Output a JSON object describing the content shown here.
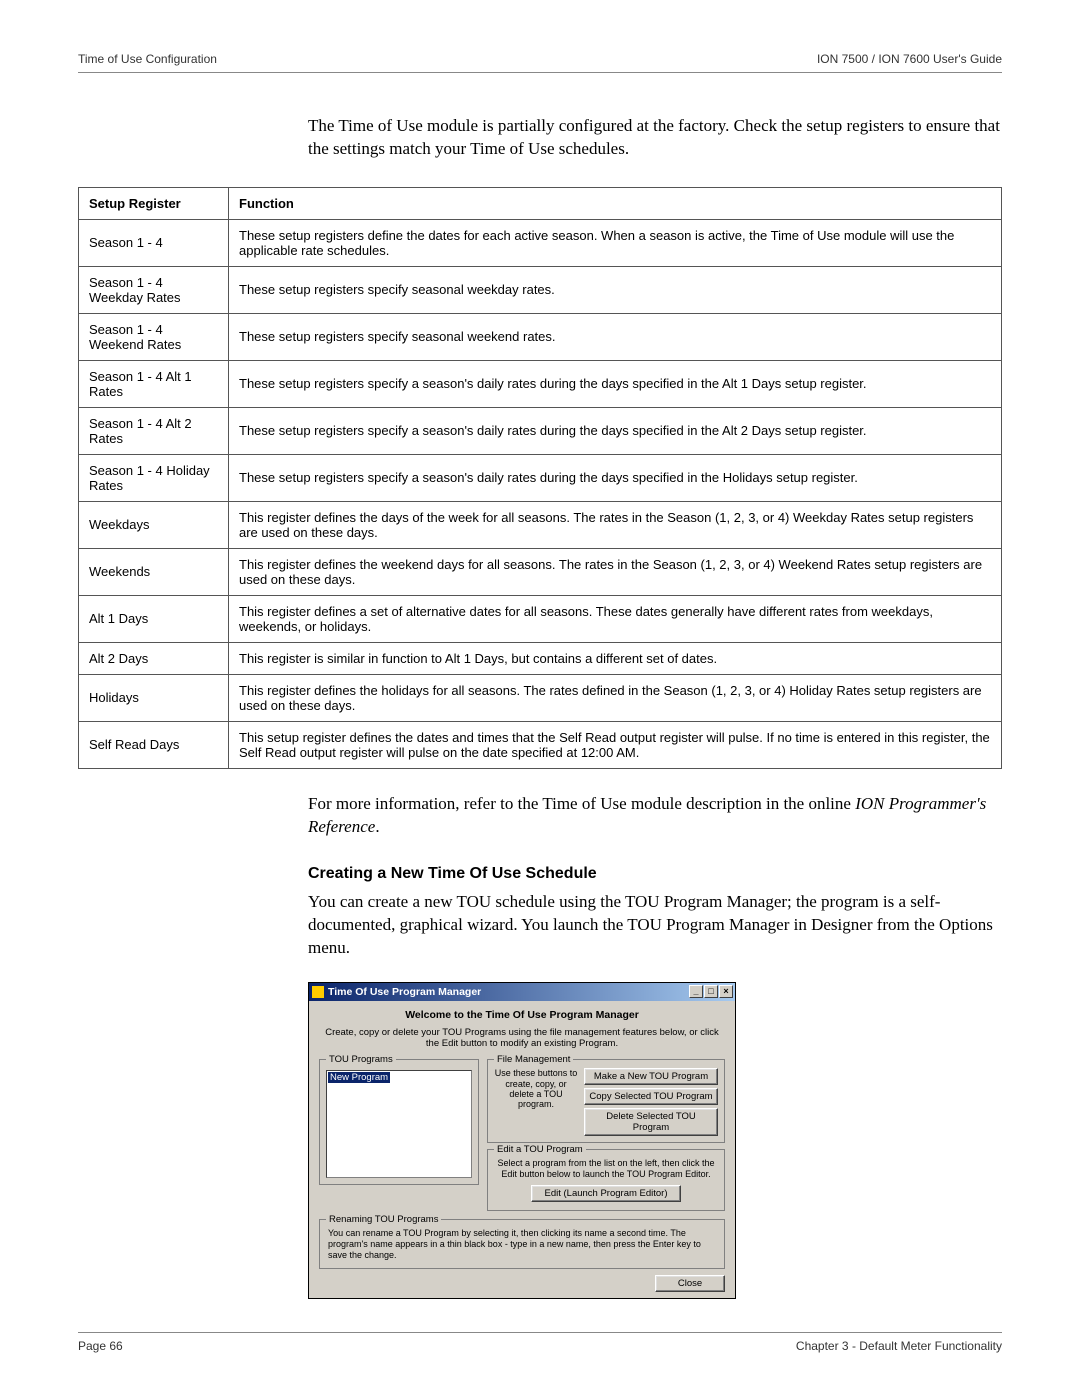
{
  "header": {
    "left": "Time of Use Configuration",
    "right": "ION 7500 / ION 7600 User's Guide"
  },
  "intro": "The Time of Use module is partially configured at the factory. Check the setup registers to ensure that the settings match your Time of Use schedules.",
  "table": {
    "col1": "Setup Register",
    "col2": "Function",
    "rows": [
      {
        "reg": "Season 1 - 4",
        "fn": "These setup registers define the dates for each active season. When a season is active, the Time of Use module will use the applicable rate schedules."
      },
      {
        "reg": "Season 1 - 4 Weekday Rates",
        "fn": "These setup registers specify seasonal weekday rates."
      },
      {
        "reg": "Season 1 - 4 Weekend Rates",
        "fn": "These setup registers specify seasonal weekend rates."
      },
      {
        "reg": "Season 1 - 4 Alt 1 Rates",
        "fn": "These setup registers specify a season's daily rates during the days specified in the Alt 1 Days setup register."
      },
      {
        "reg": "Season 1 - 4 Alt 2 Rates",
        "fn": "These setup registers specify a season's daily rates during the days specified in the Alt 2 Days setup register."
      },
      {
        "reg": "Season 1 - 4 Holiday Rates",
        "fn": "These setup registers specify a season's daily rates during the days specified in the Holidays setup register."
      },
      {
        "reg": "Weekdays",
        "fn": "This register defines the days of the week for all seasons. The rates in the Season (1, 2, 3, or 4) Weekday Rates setup registers are used on these days."
      },
      {
        "reg": "Weekends",
        "fn": "This register defines the weekend days for all seasons. The rates in the Season (1, 2, 3, or 4) Weekend Rates setup registers are used on these days."
      },
      {
        "reg": "Alt 1 Days",
        "fn": "This register defines a set of alternative dates for all seasons. These dates generally have different rates from weekdays, weekends, or holidays."
      },
      {
        "reg": "Alt 2 Days",
        "fn": "This register is similar in function to Alt 1 Days, but contains a different set of dates."
      },
      {
        "reg": "Holidays",
        "fn": "This register defines the holidays for all seasons. The rates defined in the Season (1, 2, 3, or 4) Holiday Rates setup registers are used on these days."
      },
      {
        "reg": "Self Read Days",
        "fn": "This setup register defines the dates and times that the Self Read output register will pulse. If no time is entered in this register, the Self Read output register will pulse on the date specified at 12:00 AM."
      }
    ]
  },
  "after_table_1": "For more information, refer to the Time of Use module description in the online ",
  "after_table_italic": "ION Programmer's Reference",
  "after_table_2": ".",
  "subheading": "Creating a New Time Of Use Schedule",
  "body2": "You can create a new TOU schedule using the TOU Program Manager; the program is a self-documented, graphical wizard. You launch the TOU Program Manager in Designer from the Options menu.",
  "dialog": {
    "title": "Time Of Use Program Manager",
    "min": "_",
    "max": "□",
    "close": "×",
    "welcome": "Welcome to the Time Of Use Program Manager",
    "subtext": "Create, copy or delete your TOU Programs using the file management features below, or click the Edit button to modify an existing Program.",
    "programs_legend": "TOU Programs",
    "list_item": "New Program",
    "fm_legend": "File Management",
    "fm_text": "Use these buttons to create, copy, or delete a TOU program.",
    "btn_make": "Make a New TOU Program",
    "btn_copy": "Copy Selected TOU Program",
    "btn_delete": "Delete Selected TOU Program",
    "edit_legend": "Edit a TOU Program",
    "edit_text": "Select a program from the list on the left, then click the Edit button below to launch the TOU Program Editor.",
    "btn_edit": "Edit (Launch Program Editor)",
    "rename_legend": "Renaming TOU Programs",
    "rename_text": "You can rename a TOU Program by selecting it, then clicking its name a second time. The program's name appears in a thin black box - type in a new name, then press the Enter key to save the change.",
    "btn_close": "Close"
  },
  "footer": {
    "left": "Page 66",
    "right": "Chapter 3 - Default Meter Functionality"
  }
}
